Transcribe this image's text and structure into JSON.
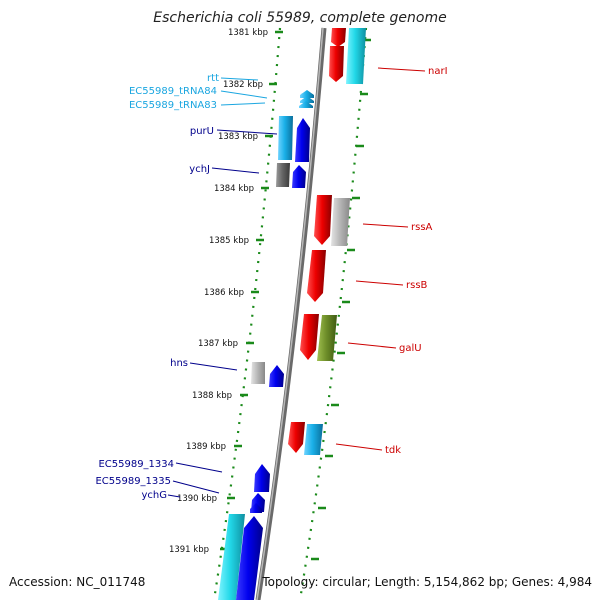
{
  "title": "Escherichia coli 55989, complete genome",
  "footer": {
    "accession": "Accession: NC_011748",
    "stats": "Topology: circular; Length: 5,154,862 bp; Genes: 4,984"
  },
  "colors": {
    "forward_cds": "#0000ee",
    "reverse_cds": "#ee0000",
    "trna": "#1ab0e8",
    "rrna": "#22d8e8",
    "other": "#b0b0b0",
    "ruler": "#1a8a1a",
    "backbone": "#8c8c8c",
    "forward_label": "#00008b",
    "reverse_label": "#cc0000",
    "trna_label": "#1aa6e0"
  },
  "kbp_ticks": [
    "1381 kbp",
    "1382 kbp",
    "1383 kbp",
    "1384 kbp",
    "1385 kbp",
    "1386 kbp",
    "1387 kbp",
    "1388 kbp",
    "1389 kbp",
    "1390 kbp",
    "1391 kbp"
  ],
  "forward_labels": [
    "rtt",
    "EC55989_tRNA84",
    "EC55989_tRNA83",
    "purU",
    "ychJ",
    "hns",
    "EC55989_1334",
    "EC55989_1335",
    "ychG"
  ],
  "reverse_labels": [
    "narI",
    "rssA",
    "rssB",
    "galU",
    "tdk"
  ]
}
